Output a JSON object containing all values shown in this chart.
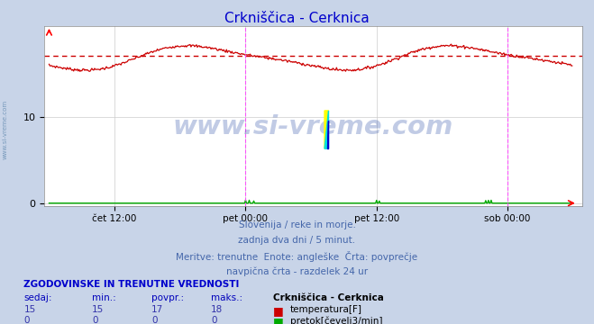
{
  "title": "Crkniščica - Cerknica",
  "title_color": "#0000cc",
  "bg_color": "#c8d4e8",
  "plot_bg_color": "#ffffff",
  "grid_color": "#cccccc",
  "x_tick_labels": [
    "čet 12:00",
    "pet 00:00",
    "pet 12:00",
    "sob 00:00"
  ],
  "y_lim": [
    -0.3,
    20.5
  ],
  "y_ticks": [
    0,
    10
  ],
  "temp_avg": 17.0,
  "temp_color": "#cc0000",
  "flow_color": "#00aa00",
  "dashed_color": "#cc0000",
  "magenta_color": "#ff44ff",
  "watermark": "www.si-vreme.com",
  "watermark_color": "#2244aa",
  "subtitle1": "Slovenija / reke in morje.",
  "subtitle2": "zadnja dva dni / 5 minut.",
  "subtitle3": "Meritve: trenutne  Enote: angleške  Črta: povprečje",
  "subtitle4": "navpična črta - razdelek 24 ur",
  "subtitle_color": "#4466aa",
  "table_header": "ZGODOVINSKE IN TRENUTNE VREDNOSTI",
  "table_header_color": "#0000cc",
  "col_headers": [
    "sedaj:",
    "min.:",
    "povpr.:",
    "maks.:"
  ],
  "col_header_color": "#0000bb",
  "station_name": "Crkniščica - Cerknica",
  "temp_row": [
    15,
    15,
    17,
    18
  ],
  "flow_row": [
    0,
    0,
    0,
    0
  ],
  "temp_label": "temperatura[F]",
  "flow_label": "pretok[čevelj3/min]",
  "num_points": 576,
  "left_watermark": "www.si-vreme.com",
  "left_wm_color": "#7799bb"
}
